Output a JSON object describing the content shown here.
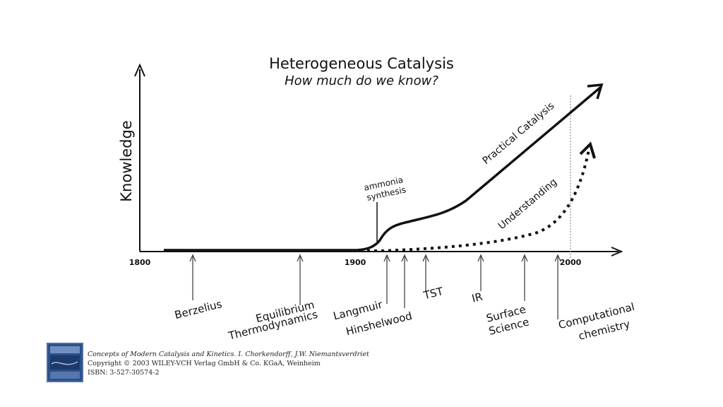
{
  "title": "Heterogeneous Catalysis",
  "subtitle": "How much do we know?",
  "y_axis_label": "Knowledge",
  "x_ticks": [
    "1800",
    "1900",
    "2000"
  ],
  "milestones": {
    "berzelius": "Berzelius",
    "equilibrium_1": "Equilibrium",
    "equilibrium_2": "Thermodynamics",
    "langmuir": "Langmuir",
    "hinshelwood": "Hinshelwood",
    "tst": "TST",
    "ir": "IR",
    "surface_1": "Surface",
    "surface_2": "Science",
    "comp_1": "Computational",
    "comp_2": "chemistry"
  },
  "curve_labels": {
    "practical": "Practical Catalysis",
    "understanding": "Understanding"
  },
  "annotation": {
    "line1": "ammonia",
    "line2": "synthesis"
  },
  "reference": {
    "line1": "Concepts of Modern Catalysis and Kinetics. I. Chorkendorff, J.W. Niemantsverdriet",
    "line2": "Copyright © 2003 WILEY-VCH Verlag GmbH & Co. KGaA, Weinheim",
    "line3": "ISBN: 3-527-30574-2"
  },
  "colors": {
    "ink": "#111111",
    "book_cover": "#2b4f86",
    "book_border": "#4a6fa8"
  }
}
